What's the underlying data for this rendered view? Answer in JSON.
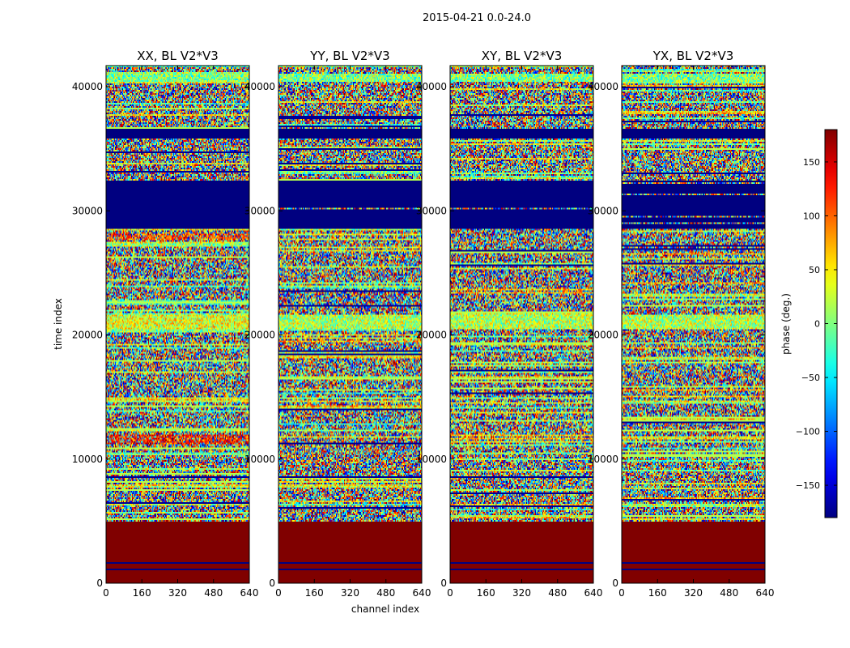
{
  "figure": {
    "suptitle": "2015-04-21 0.0-24.0"
  },
  "chart_data": {
    "type": "heatmap",
    "xlabel": "channel index",
    "ylabel": "time index",
    "xlim": [
      0,
      640
    ],
    "ylim": [
      0,
      41700
    ],
    "xticks": [
      "0",
      "160",
      "320",
      "480",
      "640"
    ],
    "yticks": [
      "0",
      "10000",
      "20000",
      "30000",
      "40000"
    ],
    "panels": [
      {
        "title": "XX, BL V2*V3",
        "variant": 0
      },
      {
        "title": "YY, BL V2*V3",
        "variant": 1
      },
      {
        "title": "XY, BL V2*V3",
        "variant": 2
      },
      {
        "title": "YX, BL V2*V3",
        "variant": 3
      }
    ],
    "colorbar": {
      "label": "phase (deg.)",
      "range": [
        -180,
        180
      ],
      "ticks": [
        "150",
        "100",
        "50",
        "0",
        "−50",
        "−100",
        "−150"
      ],
      "tick_values": [
        150,
        100,
        50,
        0,
        -50,
        -100,
        -150
      ],
      "colormap": "jet"
    },
    "constant_regions": [
      {
        "from": 0,
        "to": 5000,
        "phase": 180,
        "note": "saturated red block"
      },
      {
        "from": 32400,
        "to": 28600,
        "phase": -180,
        "note": "flagged navy block"
      },
      {
        "from": 36600,
        "to": 35900,
        "phase": -180,
        "note": "flagged navy band"
      }
    ]
  }
}
